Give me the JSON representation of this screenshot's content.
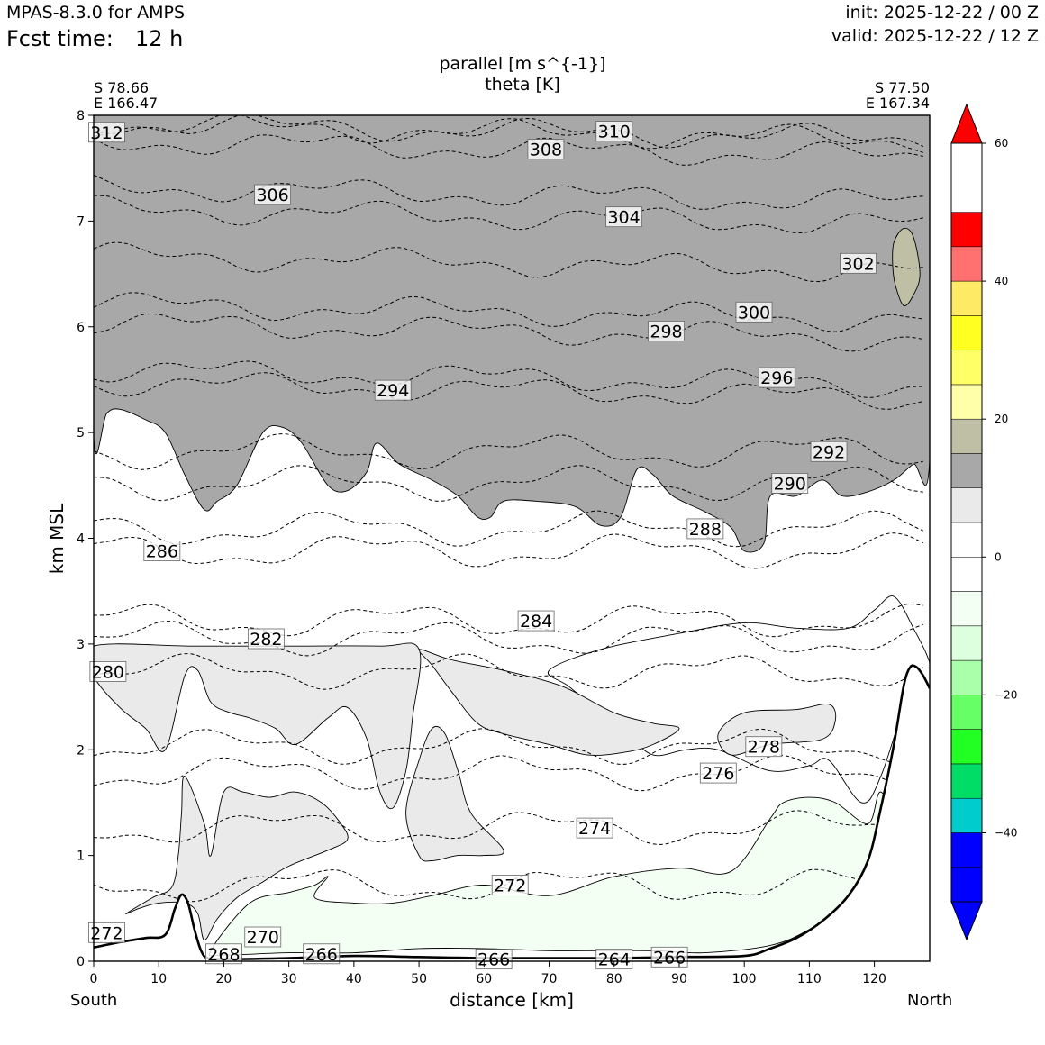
{
  "header": {
    "model": "MPAS-8.3.0 for AMPS",
    "fcst_label": "Fcst time:",
    "fcst_value": "12 h",
    "init": "init: 2025-12-22 / 00 Z",
    "valid": "valid: 2025-12-22 / 12 Z"
  },
  "chart_data": {
    "type": "cross-section",
    "title_line1": "parallel [m s^{-1}]",
    "title_line2": "theta [K]",
    "xlabel": "distance [km]",
    "ylabel": "km MSL",
    "xlim": [
      0,
      128.5
    ],
    "ylim": [
      0,
      8
    ],
    "x_ticks": [
      0,
      10,
      20,
      30,
      40,
      50,
      60,
      70,
      80,
      90,
      100,
      110,
      120
    ],
    "y_ticks": [
      0,
      1,
      2,
      3,
      4,
      5,
      6,
      7,
      8
    ],
    "left_end": {
      "lat": "S 78.66",
      "lon": "E 166.47",
      "dir": "South"
    },
    "right_end": {
      "lat": "S 77.50",
      "lon": "E 167.34",
      "dir": "North"
    },
    "colorbar": {
      "levels": [
        -50,
        -45,
        -40,
        -35,
        -30,
        -25,
        -20,
        -15,
        -10,
        -5,
        0,
        5,
        10,
        15,
        20,
        25,
        30,
        35,
        40,
        45,
        50,
        55,
        60
      ],
      "colors": [
        "#0000ff",
        "#0000ff",
        "#00cccc",
        "#00dd66",
        "#22ff22",
        "#66ff66",
        "#aaffaa",
        "#ddffdd",
        "#f2fff2",
        "#ffffff",
        "#ffffff",
        "#eaeaea",
        "#a8a8a8",
        "#bfbfa6",
        "#ffffaa",
        "#ffff66",
        "#ffff22",
        "#ffea66",
        "#ff7070",
        "#ff0000"
      ],
      "under_color": "#0000ff",
      "over_color": "#ff0000",
      "tick_values": [
        60,
        40,
        20,
        0,
        -20,
        -40
      ],
      "tick_labels": [
        "60",
        "40",
        "20",
        "0",
        "−20",
        "−40"
      ]
    },
    "theta_labels": [
      {
        "value": "312",
        "x": 2,
        "y": 7.84
      },
      {
        "value": "310",
        "x": 80,
        "y": 7.85
      },
      {
        "value": "308",
        "x": 69.5,
        "y": 7.68
      },
      {
        "value": "306",
        "x": 27.5,
        "y": 7.25
      },
      {
        "value": "304",
        "x": 81.5,
        "y": 7.04
      },
      {
        "value": "302",
        "x": 117.5,
        "y": 6.6
      },
      {
        "value": "300",
        "x": 101.5,
        "y": 6.14
      },
      {
        "value": "298",
        "x": 88,
        "y": 5.96
      },
      {
        "value": "296",
        "x": 105,
        "y": 5.52
      },
      {
        "value": "294",
        "x": 46,
        "y": 5.4
      },
      {
        "value": "292",
        "x": 113,
        "y": 4.82
      },
      {
        "value": "290",
        "x": 107,
        "y": 4.52
      },
      {
        "value": "288",
        "x": 94,
        "y": 4.09
      },
      {
        "value": "286",
        "x": 10.5,
        "y": 3.88
      },
      {
        "value": "284",
        "x": 68,
        "y": 3.22
      },
      {
        "value": "282",
        "x": 26.5,
        "y": 3.05
      },
      {
        "value": "280",
        "x": 2.2,
        "y": 2.74
      },
      {
        "value": "278",
        "x": 103,
        "y": 2.03
      },
      {
        "value": "276",
        "x": 96,
        "y": 1.78
      },
      {
        "value": "274",
        "x": 77,
        "y": 1.26
      },
      {
        "value": "272",
        "x": 64,
        "y": 0.72
      },
      {
        "value": "272",
        "x": 2,
        "y": 0.27
      },
      {
        "value": "270",
        "x": 26,
        "y": 0.23
      },
      {
        "value": "268",
        "x": 20,
        "y": 0.07
      },
      {
        "value": "266",
        "x": 35,
        "y": 0.07
      },
      {
        "value": "266",
        "x": 61.5,
        "y": 0.02
      },
      {
        "value": "264",
        "x": 80,
        "y": 0.02
      },
      {
        "value": "266",
        "x": 88.5,
        "y": 0.04
      }
    ],
    "shaded_regions": [
      {
        "name": "parallel-15-20",
        "fill": "#a8a8a8",
        "points": [
          [
            0,
            4.97
          ],
          [
            2,
            5.18
          ],
          [
            4,
            5.22
          ],
          [
            8,
            5.12
          ],
          [
            11,
            5.0
          ],
          [
            14,
            4.6
          ],
          [
            17,
            4.27
          ],
          [
            19,
            4.35
          ],
          [
            22,
            4.5
          ],
          [
            26,
            5.0
          ],
          [
            29,
            5.05
          ],
          [
            32,
            4.9
          ],
          [
            36,
            4.5
          ],
          [
            39,
            4.45
          ],
          [
            42,
            4.63
          ],
          [
            43.5,
            4.9
          ],
          [
            47,
            4.7
          ],
          [
            52,
            4.55
          ],
          [
            56,
            4.4
          ],
          [
            59,
            4.2
          ],
          [
            61,
            4.2
          ],
          [
            63,
            4.35
          ],
          [
            68,
            4.35
          ],
          [
            74,
            4.3
          ],
          [
            78,
            4.12
          ],
          [
            81,
            4.2
          ],
          [
            83.5,
            4.65
          ],
          [
            86,
            4.6
          ],
          [
            89,
            4.4
          ],
          [
            94,
            4.25
          ],
          [
            98,
            4.1
          ],
          [
            100,
            3.88
          ],
          [
            103,
            3.95
          ],
          [
            104,
            4.4
          ],
          [
            108,
            4.4
          ],
          [
            112,
            4.55
          ],
          [
            115,
            4.4
          ],
          [
            119,
            4.44
          ],
          [
            123,
            4.55
          ],
          [
            126,
            4.7
          ],
          [
            128.5,
            4.75
          ],
          [
            128.5,
            8
          ],
          [
            0,
            8
          ]
        ]
      },
      {
        "name": "parallel-20-25",
        "fill": "#bfbfa6",
        "points": [
          [
            123,
            6.8
          ],
          [
            124.5,
            6.93
          ],
          [
            126,
            6.85
          ],
          [
            127,
            6.5
          ],
          [
            126,
            6.3
          ],
          [
            124.5,
            6.2
          ],
          [
            123.2,
            6.4
          ],
          [
            122.8,
            6.6
          ]
        ]
      },
      {
        "name": "parallel-5-10-lower",
        "fill": "#ffffff",
        "points": [
          [
            70,
            2.75
          ],
          [
            78,
            2.95
          ],
          [
            90,
            3.1
          ],
          [
            100,
            3.2
          ],
          [
            108,
            3.15
          ],
          [
            116,
            3.15
          ],
          [
            120,
            3.32
          ],
          [
            123,
            3.45
          ],
          [
            126,
            3.15
          ],
          [
            128.5,
            2.82
          ],
          [
            128.5,
            2.58
          ],
          [
            127,
            2.7
          ],
          [
            125,
            2.5
          ],
          [
            121,
            1.75
          ],
          [
            118,
            1.5
          ],
          [
            113,
            1.9
          ],
          [
            110,
            1.85
          ],
          [
            104,
            1.8
          ],
          [
            96,
            2.0
          ],
          [
            91,
            2.0
          ],
          [
            86,
            1.95
          ],
          [
            82,
            2.15
          ],
          [
            78,
            2.35
          ],
          [
            73,
            2.6
          ]
        ]
      },
      {
        "name": "parallel-5-10-upper",
        "fill": "#eaeaea",
        "points": [
          [
            96,
            2.15
          ],
          [
            100,
            2.35
          ],
          [
            108,
            2.38
          ],
          [
            113,
            2.43
          ],
          [
            114,
            2.28
          ],
          [
            112,
            2.1
          ],
          [
            104,
            2.05
          ],
          [
            98,
            1.95
          ]
        ]
      },
      {
        "name": "parallel-5-10-ridge",
        "fill": "#eaeaea",
        "points": [
          [
            50,
            2.95
          ],
          [
            52,
            2.8
          ],
          [
            55,
            2.55
          ],
          [
            59,
            2.25
          ],
          [
            63,
            2.15
          ],
          [
            70,
            2.05
          ],
          [
            76,
            1.95
          ],
          [
            82,
            1.98
          ],
          [
            86,
            2.05
          ],
          [
            90,
            2.2
          ],
          [
            86,
            2.25
          ],
          [
            80,
            2.35
          ],
          [
            72,
            2.6
          ],
          [
            63,
            2.75
          ],
          [
            55,
            2.85
          ]
        ]
      },
      {
        "name": "parallel-5-10-left",
        "fill": "#eaeaea",
        "points": [
          [
            0,
            2.7
          ],
          [
            4,
            2.4
          ],
          [
            8,
            2.2
          ],
          [
            11,
            2.0
          ],
          [
            14,
            2.7
          ],
          [
            16,
            2.75
          ],
          [
            18,
            2.45
          ],
          [
            21,
            2.35
          ],
          [
            24,
            2.3
          ],
          [
            28,
            2.2
          ],
          [
            31,
            2.05
          ],
          [
            36,
            2.3
          ],
          [
            39,
            2.4
          ],
          [
            42,
            2.1
          ],
          [
            44,
            1.6
          ],
          [
            46,
            1.45
          ],
          [
            48,
            1.8
          ],
          [
            49,
            2.3
          ],
          [
            50,
            2.95
          ],
          [
            44,
            2.98
          ],
          [
            30,
            2.98
          ],
          [
            15,
            2.98
          ],
          [
            0,
            2.98
          ]
        ]
      },
      {
        "name": "parallel-5-10-valley",
        "fill": "#eaeaea",
        "points": [
          [
            14,
            1.75
          ],
          [
            17,
            1.3
          ],
          [
            18,
            1.0
          ],
          [
            20,
            1.6
          ],
          [
            23,
            1.6
          ],
          [
            27,
            1.55
          ],
          [
            31,
            1.6
          ],
          [
            35,
            1.5
          ],
          [
            38,
            1.3
          ],
          [
            39,
            1.15
          ],
          [
            36,
            1.05
          ],
          [
            30,
            0.9
          ],
          [
            26,
            0.75
          ],
          [
            22,
            0.6
          ],
          [
            19,
            0.4
          ],
          [
            17,
            0.2
          ],
          [
            16,
            0.45
          ],
          [
            14,
            0.55
          ],
          [
            10,
            0.55
          ],
          [
            7,
            0.5
          ],
          [
            5,
            0.45
          ],
          [
            9,
            0.6
          ],
          [
            12,
            0.7
          ],
          [
            13,
            1.0
          ],
          [
            13.5,
            1.4
          ]
        ]
      },
      {
        "name": "parallel-5-10-peak",
        "fill": "#eaeaea",
        "points": [
          [
            52,
            2.2
          ],
          [
            54,
            2.15
          ],
          [
            56,
            1.8
          ],
          [
            58,
            1.4
          ],
          [
            63,
            1.05
          ],
          [
            60,
            1.0
          ],
          [
            56,
            1.0
          ],
          [
            52,
            0.95
          ],
          [
            50,
            1.0
          ],
          [
            48,
            1.4
          ],
          [
            50,
            1.9
          ]
        ]
      },
      {
        "name": "parallel-minus5",
        "fill": "#f2fff2",
        "points": [
          [
            18,
            0.1
          ],
          [
            24,
            0.55
          ],
          [
            30,
            0.65
          ],
          [
            34,
            0.72
          ],
          [
            36,
            0.8
          ],
          [
            34,
            0.6
          ],
          [
            40,
            0.55
          ],
          [
            46,
            0.55
          ],
          [
            52,
            0.62
          ],
          [
            60,
            0.72
          ],
          [
            70,
            0.62
          ],
          [
            80,
            0.8
          ],
          [
            90,
            0.88
          ],
          [
            98,
            0.85
          ],
          [
            104,
            1.35
          ],
          [
            106,
            1.5
          ],
          [
            110,
            1.55
          ],
          [
            114,
            1.5
          ],
          [
            119,
            1.3
          ],
          [
            121,
            1.6
          ],
          [
            124,
            1.2
          ],
          [
            122,
            0.8
          ],
          [
            118,
            0.6
          ],
          [
            110,
            0.3
          ],
          [
            104,
            0.15
          ],
          [
            94,
            0.08
          ],
          [
            86,
            0.1
          ],
          [
            76,
            0.1
          ],
          [
            70,
            0.1
          ],
          [
            60,
            0.12
          ],
          [
            50,
            0.12
          ],
          [
            40,
            0.08
          ],
          [
            30,
            0.08
          ],
          [
            20,
            0.06
          ]
        ]
      }
    ],
    "terrain": [
      [
        0,
        0.13
      ],
      [
        4,
        0.18
      ],
      [
        8,
        0.22
      ],
      [
        11,
        0.25
      ],
      [
        12.5,
        0.5
      ],
      [
        13.5,
        0.63
      ],
      [
        14.5,
        0.55
      ],
      [
        15.5,
        0.3
      ],
      [
        16.5,
        0.1
      ],
      [
        17.5,
        0.03
      ],
      [
        20,
        0.02
      ],
      [
        30,
        0.03
      ],
      [
        40,
        0.05
      ],
      [
        50,
        0.04
      ],
      [
        60,
        0.03
      ],
      [
        70,
        0.03
      ],
      [
        80,
        0.03
      ],
      [
        90,
        0.04
      ],
      [
        100,
        0.05
      ],
      [
        104,
        0.12
      ],
      [
        108,
        0.22
      ],
      [
        112,
        0.38
      ],
      [
        116,
        0.62
      ],
      [
        119,
        0.95
      ],
      [
        121,
        1.45
      ],
      [
        123,
        2.05
      ],
      [
        124.5,
        2.6
      ],
      [
        125.5,
        2.78
      ],
      [
        126.5,
        2.78
      ],
      [
        127.5,
        2.7
      ],
      [
        128.5,
        2.58
      ]
    ]
  }
}
